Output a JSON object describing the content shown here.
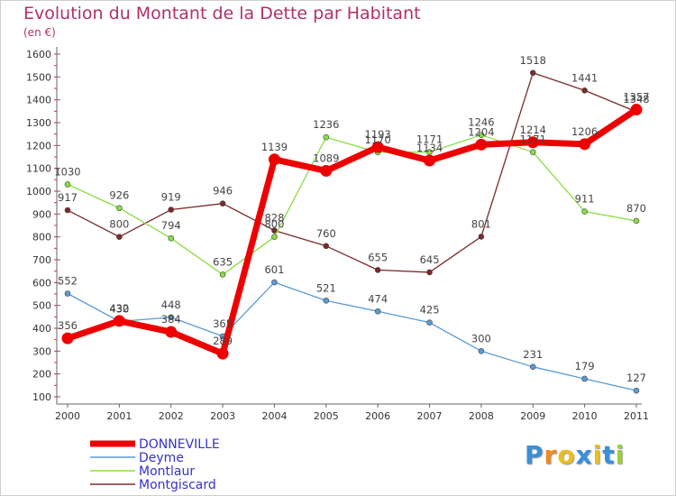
{
  "title": "Evolution du Montant de la Dette par Habitant",
  "subtitle": "(en €)",
  "logo_text": "Proxiti",
  "chart_data": {
    "type": "line",
    "title": "Evolution du Montant de la Dette par Habitant",
    "subtitle": "(en €)",
    "xlabel": "",
    "ylabel": "",
    "x": [
      "2000",
      "2001",
      "2002",
      "2003",
      "2004",
      "2005",
      "2006",
      "2007",
      "2008",
      "2009",
      "2010",
      "2011"
    ],
    "yticks": [
      "100",
      "200",
      "300",
      "400",
      "500",
      "600",
      "700",
      "800",
      "900",
      "1000",
      "1100",
      "1200",
      "1300",
      "1400",
      "1500",
      "1600"
    ],
    "ylim": [
      100,
      1600
    ],
    "grid": false,
    "legend": "bottom-left",
    "series": [
      {
        "name": "DONNEVILLE",
        "color": "#ee0000",
        "values": [
          356,
          432,
          384,
          289,
          1139,
          1089,
          1193,
          1134,
          1204,
          1214,
          1206,
          1357
        ],
        "labels": [
          "356",
          "432",
          "384",
          "289",
          "1139",
          "1089",
          "1193",
          "1134",
          "1204",
          "1214",
          "1206",
          "1357"
        ]
      },
      {
        "name": "Deyme",
        "color": "#5a9bd5",
        "values": [
          552,
          430,
          448,
          365,
          601,
          521,
          474,
          425,
          300,
          231,
          179,
          127
        ],
        "labels": [
          "552",
          "430",
          "448",
          "365",
          "601",
          "521",
          "474",
          "425",
          "300",
          "231",
          "179",
          "127"
        ]
      },
      {
        "name": "Montlaur",
        "color": "#88dd44",
        "values": [
          1030,
          926,
          794,
          635,
          800,
          1236,
          1170,
          1171,
          1246,
          1171,
          911,
          870
        ],
        "labels": [
          "1030",
          "926",
          "794",
          "635",
          "800",
          "1236",
          "1170",
          "1171",
          "1246",
          "1171",
          "911",
          "870"
        ]
      },
      {
        "name": "Montgiscard",
        "color": "#7a2a2a",
        "values": [
          917,
          800,
          919,
          946,
          828,
          760,
          655,
          645,
          801,
          1518,
          1441,
          1348
        ],
        "labels": [
          "917",
          "800",
          "919",
          "946",
          "828",
          "760",
          "655",
          "645",
          "801",
          "1518",
          "1441",
          "1348"
        ]
      }
    ]
  }
}
